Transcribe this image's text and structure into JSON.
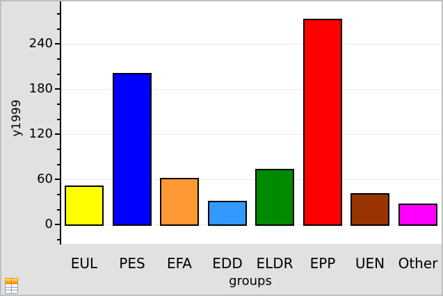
{
  "chart_data": {
    "type": "bar",
    "title": "",
    "categories": [
      "EUL",
      "PES",
      "EFA",
      "EDD",
      "ELDR",
      "EPP",
      "UEN",
      "Other"
    ],
    "values": [
      50,
      200,
      60,
      30,
      72,
      272,
      40,
      26
    ],
    "bar_colors": [
      "#FFFF00",
      "#0000FF",
      "#FF9933",
      "#3399FF",
      "#008A00",
      "#FF0000",
      "#993300",
      "#FF00FF"
    ],
    "xlabel": "groups",
    "ylabel": "y1999",
    "yticks_major": [
      0,
      60,
      120,
      180,
      240
    ],
    "ytick_labels": [
      "0",
      "60",
      "120",
      "180",
      "240"
    ],
    "minor_tick_step": 20,
    "ylim": [
      -26,
      297
    ],
    "grid": "horizontal-major-gridlines",
    "legend": "none",
    "colors": {
      "plot_background": "#FFFFFF",
      "window_background": "#E1E1E1",
      "window_border": "#C0C0C0",
      "gridline": "#E8E8E8",
      "axis": "#000000",
      "bar_border": "#000000",
      "text": "#000000"
    }
  },
  "icons": {
    "bottom_left": "spreadsheet-table-icon"
  }
}
